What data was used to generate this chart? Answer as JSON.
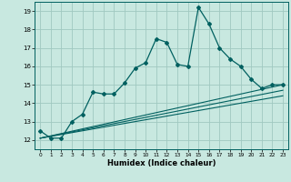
{
  "xlabel": "Humidex (Indice chaleur)",
  "xlim": [
    -0.5,
    23.5
  ],
  "ylim": [
    11.5,
    19.5
  ],
  "background_color": "#c8e8e0",
  "grid_color": "#a0c8c0",
  "line_color": "#006060",
  "yticks": [
    12,
    13,
    14,
    15,
    16,
    17,
    18,
    19
  ],
  "xticks": [
    0,
    1,
    2,
    3,
    4,
    5,
    6,
    7,
    8,
    9,
    10,
    11,
    12,
    13,
    14,
    15,
    16,
    17,
    18,
    19,
    20,
    21,
    22,
    23
  ],
  "curve1_x": [
    0,
    1,
    2,
    3,
    4,
    5,
    6,
    7,
    8,
    9,
    10,
    11,
    12,
    13,
    14,
    15,
    16,
    17,
    18,
    19,
    20,
    21,
    22,
    23
  ],
  "curve1_y": [
    12.5,
    12.1,
    12.1,
    13.0,
    13.4,
    14.6,
    14.5,
    14.5,
    15.1,
    15.9,
    16.2,
    17.5,
    17.3,
    16.1,
    16.0,
    19.2,
    18.3,
    17.0,
    16.4,
    16.0,
    15.3,
    14.8,
    15.0,
    15.0
  ],
  "line2_x": [
    0,
    23
  ],
  "line2_y": [
    12.1,
    15.0
  ],
  "line3_x": [
    0,
    23
  ],
  "line3_y": [
    12.1,
    14.7
  ],
  "line4_x": [
    0,
    23
  ],
  "line4_y": [
    12.1,
    14.4
  ]
}
